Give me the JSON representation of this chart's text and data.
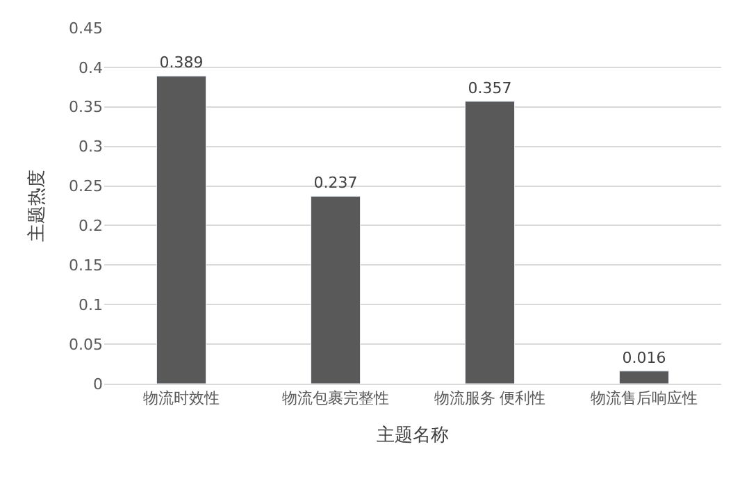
{
  "chart_data": {
    "type": "bar",
    "xlabel": "主题名称",
    "ylabel": "主题热度",
    "categories": [
      "物流时效性",
      "物流包裹完整性",
      "物流服务 便利性",
      "物流售后响应性"
    ],
    "values": [
      0.389,
      0.237,
      0.357,
      0.016
    ],
    "color": "#595959",
    "ylim": [
      0,
      0.45
    ],
    "yticks": [
      0,
      0.05,
      0.1,
      0.15,
      0.2,
      0.25,
      0.3,
      0.35,
      0.4,
      0.45
    ],
    "grid": "y",
    "data_labels": true
  }
}
